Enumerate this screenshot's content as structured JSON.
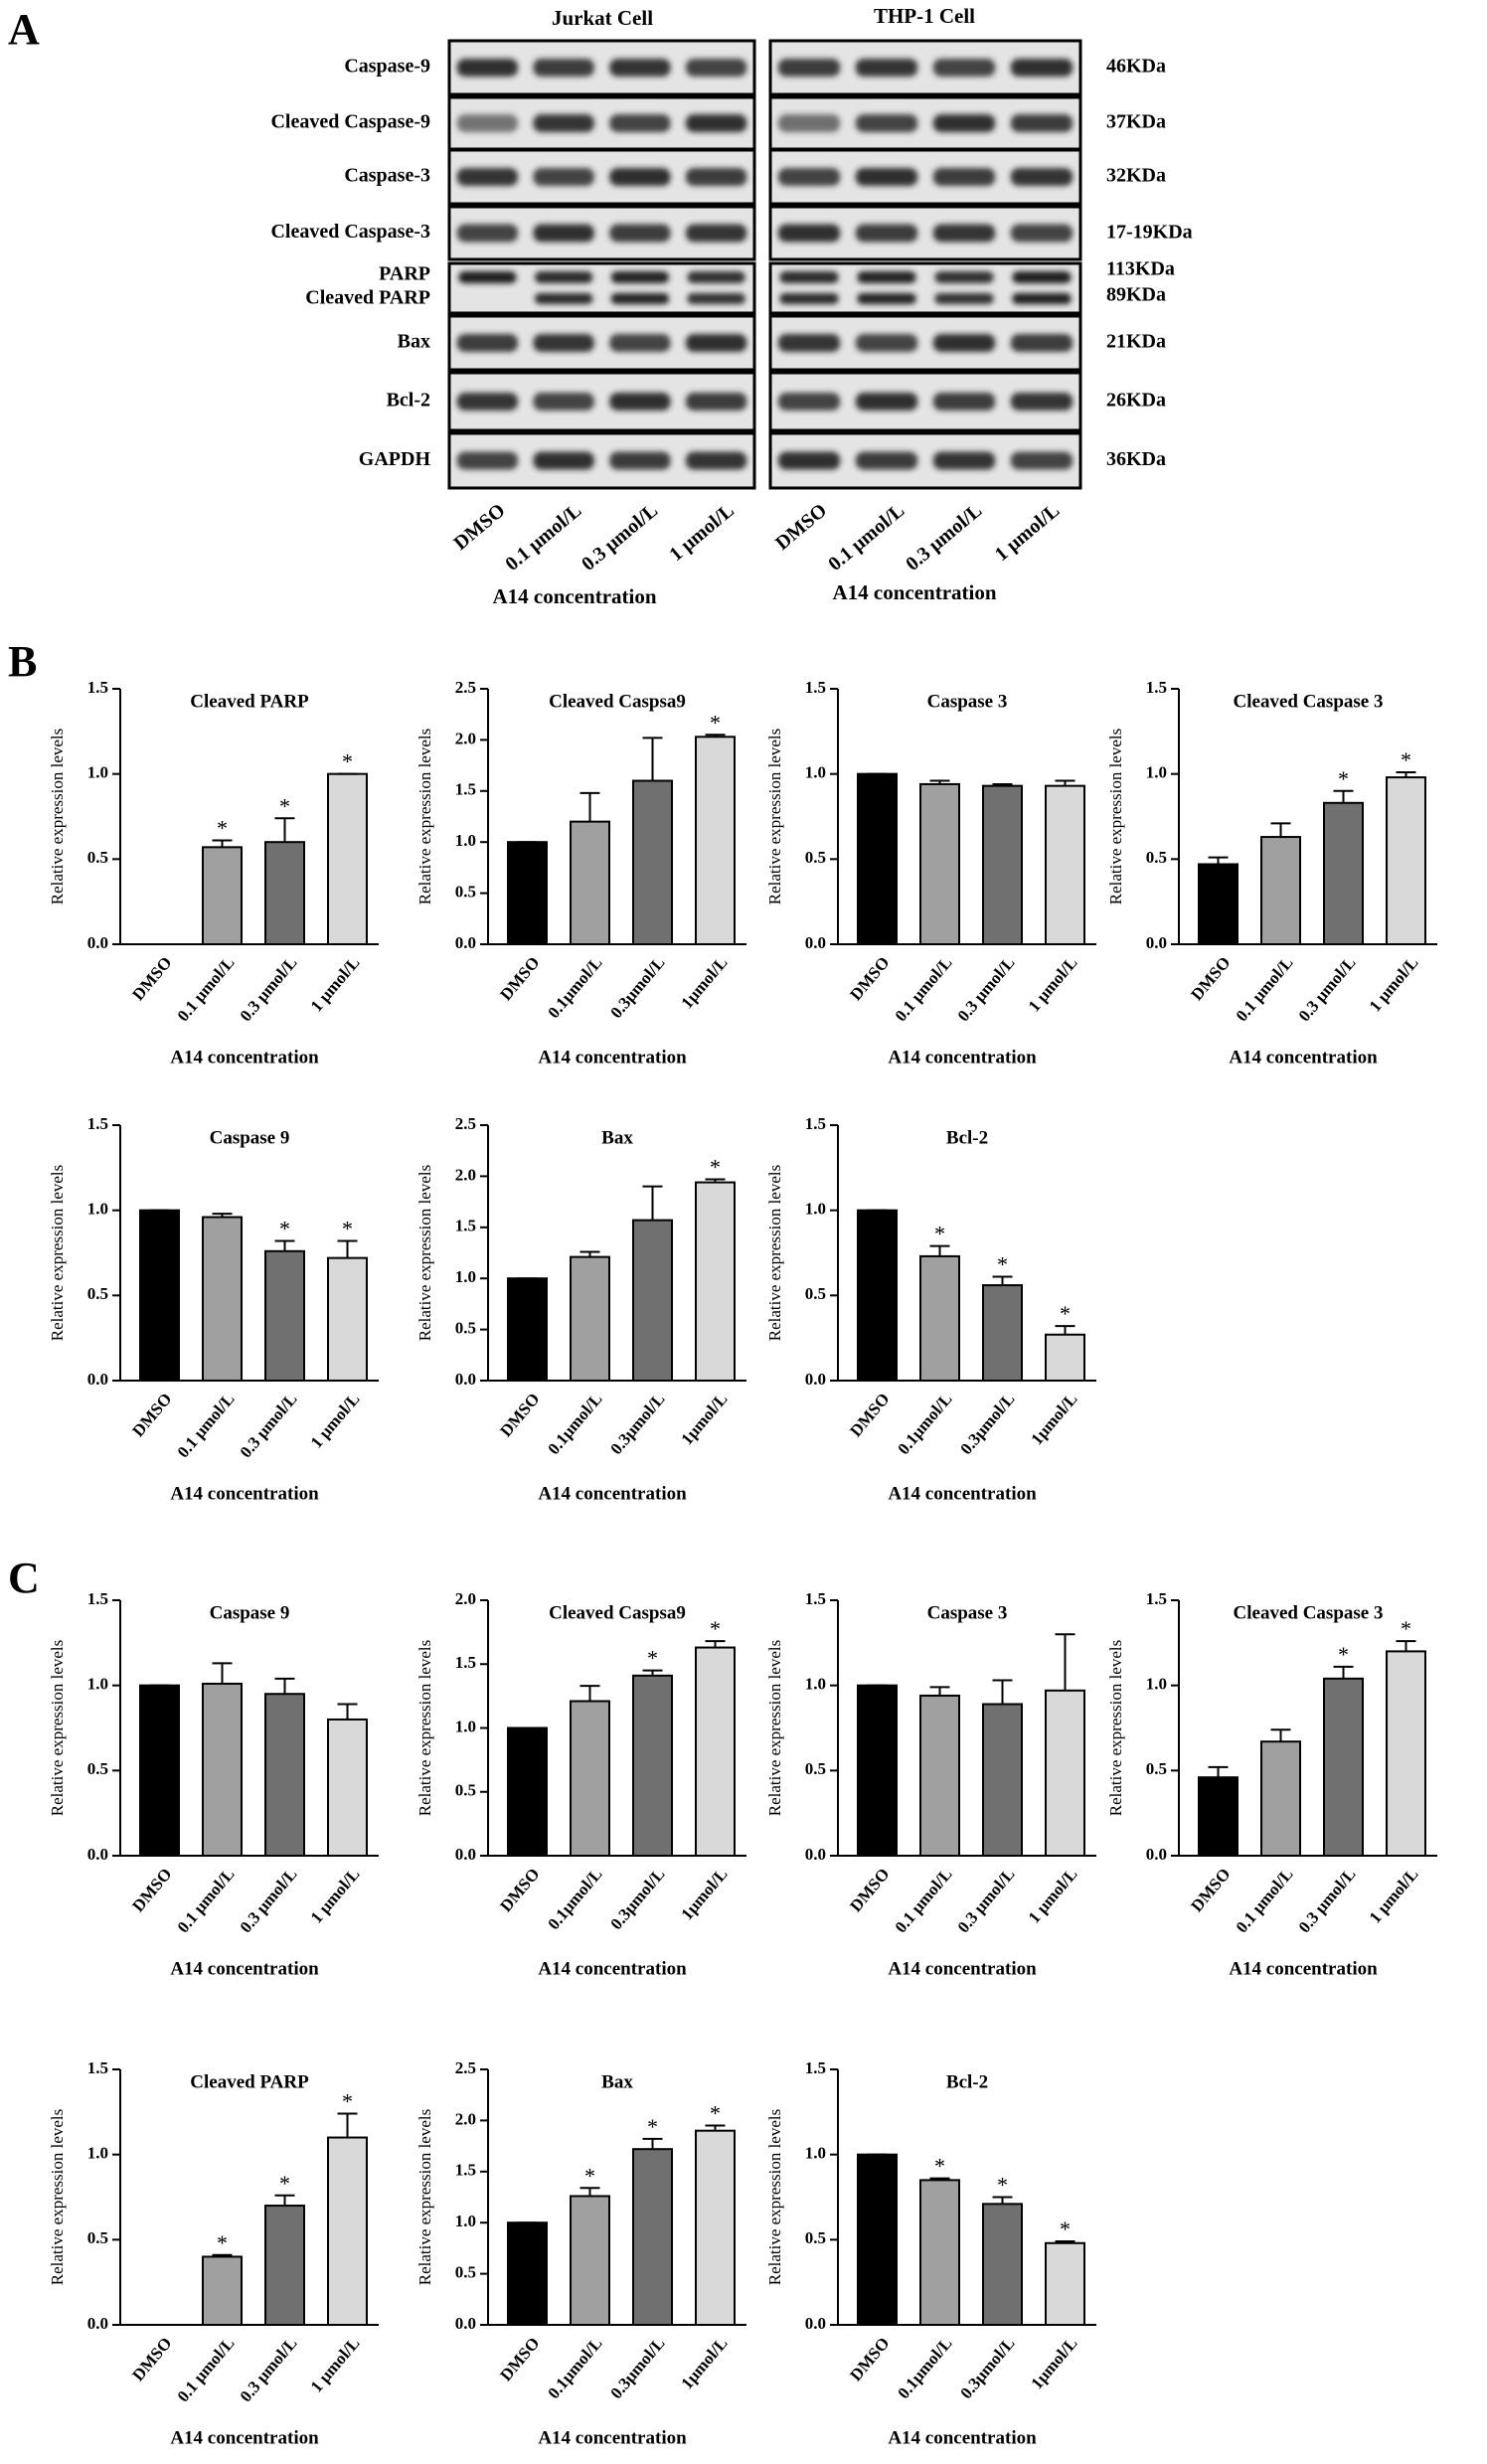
{
  "panel_labels": [
    "A",
    "B",
    "C"
  ],
  "blot": {
    "headers": [
      "Jurkat Cell",
      "THP-1 Cell"
    ],
    "rows": [
      {
        "labels": [
          "Caspase-9"
        ],
        "kda": [
          "46KDa"
        ]
      },
      {
        "labels": [
          "Cleaved Caspase-9"
        ],
        "kda": [
          "37KDa"
        ]
      },
      {
        "labels": [
          "Caspase-3"
        ],
        "kda": [
          "32KDa"
        ]
      },
      {
        "labels": [
          "Cleaved Caspase-3"
        ],
        "kda": [
          "17-19KDa"
        ]
      },
      {
        "labels": [
          "PARP",
          "Cleaved PARP"
        ],
        "kda": [
          "113KDa",
          "89KDa"
        ]
      },
      {
        "labels": [
          "Bax"
        ],
        "kda": [
          "21KDa"
        ]
      },
      {
        "labels": [
          "Bcl-2"
        ],
        "kda": [
          "26KDa"
        ]
      },
      {
        "labels": [
          "GAPDH"
        ],
        "kda": [
          "36KDa"
        ]
      }
    ],
    "lanes": [
      "DMSO",
      "0.1 μmol/L",
      "0.3 μmol/L",
      "1 μmol/L"
    ],
    "xlabel": "A14 concentration"
  },
  "chart_data": [
    {
      "type": "bar",
      "title": "Cleaved PARP",
      "ylabel": "Relative expression levels",
      "xlabel": "A14 concentration",
      "categories": [
        "DMSO",
        "0.1 μmol/L",
        "0.3 μmol/L",
        "1 μmol/L"
      ],
      "values": [
        0,
        0.57,
        0.6,
        1.0
      ],
      "errors": [
        0,
        0.04,
        0.14,
        0
      ],
      "stars": [
        null,
        "*",
        "*",
        "*"
      ],
      "colors": [
        "#000000",
        "#a0a0a0",
        "#707070",
        "#d9d9d9"
      ],
      "ylim": [
        0,
        1.5
      ],
      "yticks": [
        {
          "value": 0,
          "label": "0.0"
        },
        {
          "value": 0.5,
          "label": "0.5"
        },
        {
          "value": 1,
          "label": "1.0"
        },
        {
          "value": 1.5,
          "label": "1.5"
        }
      ]
    },
    {
      "type": "bar",
      "title": "Cleaved Caspsa9",
      "ylabel": "Relative expression levels",
      "xlabel": "A14 concentration",
      "categories": [
        "DMSO",
        "0.1μmol/L",
        "0.3μmol/L",
        "1μmol/L"
      ],
      "values": [
        1.0,
        1.2,
        1.6,
        2.03
      ],
      "errors": [
        0,
        0.28,
        0.42,
        0.02
      ],
      "stars": [
        null,
        null,
        null,
        "*"
      ],
      "colors": [
        "#000000",
        "#a0a0a0",
        "#707070",
        "#d9d9d9"
      ],
      "ylim": [
        0,
        2.5
      ],
      "yticks": [
        {
          "value": 0,
          "label": "0.0"
        },
        {
          "value": 0.5,
          "label": "0.5"
        },
        {
          "value": 1,
          "label": "1.0"
        },
        {
          "value": 1.5,
          "label": "1.5"
        },
        {
          "value": 2,
          "label": "2.0"
        },
        {
          "value": 2.5,
          "label": "2.5"
        }
      ]
    },
    {
      "type": "bar",
      "title": "Caspase 3",
      "ylabel": "Relative expression levels",
      "xlabel": "A14 concentration",
      "categories": [
        "DMSO",
        "0.1 μmol/L",
        "0.3 μmol/L",
        "1 μmol/L"
      ],
      "values": [
        1.0,
        0.94,
        0.93,
        0.93
      ],
      "errors": [
        0,
        0.02,
        0.01,
        0.03
      ],
      "stars": [
        null,
        null,
        null,
        null
      ],
      "colors": [
        "#000000",
        "#a0a0a0",
        "#707070",
        "#d9d9d9"
      ],
      "ylim": [
        0,
        1.5
      ],
      "yticks": [
        {
          "value": 0,
          "label": "0.0"
        },
        {
          "value": 0.5,
          "label": "0.5"
        },
        {
          "value": 1,
          "label": "1.0"
        },
        {
          "value": 1.5,
          "label": "1.5"
        }
      ]
    },
    {
      "type": "bar",
      "title": "Cleaved Caspase 3",
      "ylabel": "Relative expression levels",
      "xlabel": "A14 concentration",
      "categories": [
        "DMSO",
        "0.1 μmol/L",
        "0.3 μmol/L",
        "1 μmol/L"
      ],
      "values": [
        0.47,
        0.63,
        0.83,
        0.98
      ],
      "errors": [
        0.04,
        0.08,
        0.07,
        0.03
      ],
      "stars": [
        null,
        null,
        "*",
        "*"
      ],
      "colors": [
        "#000000",
        "#a0a0a0",
        "#707070",
        "#d9d9d9"
      ],
      "ylim": [
        0,
        1.5
      ],
      "yticks": [
        {
          "value": 0,
          "label": "0.0"
        },
        {
          "value": 0.5,
          "label": "0.5"
        },
        {
          "value": 1,
          "label": "1.0"
        },
        {
          "value": 1.5,
          "label": "1.5"
        }
      ]
    },
    {
      "type": "bar",
      "title": "Caspase 9",
      "ylabel": "Relative expression levels",
      "xlabel": "A14 concentration",
      "categories": [
        "DMSO",
        "0.1 μmol/L",
        "0.3 μmol/L",
        "1 μmol/L"
      ],
      "values": [
        1.0,
        0.96,
        0.76,
        0.72
      ],
      "errors": [
        0,
        0.02,
        0.06,
        0.1
      ],
      "stars": [
        null,
        null,
        "*",
        "*"
      ],
      "colors": [
        "#000000",
        "#a0a0a0",
        "#707070",
        "#d9d9d9"
      ],
      "ylim": [
        0,
        1.5
      ],
      "yticks": [
        {
          "value": 0,
          "label": "0.0"
        },
        {
          "value": 0.5,
          "label": "0.5"
        },
        {
          "value": 1,
          "label": "1.0"
        },
        {
          "value": 1.5,
          "label": "1.5"
        }
      ]
    },
    {
      "type": "bar",
      "title": "Bax",
      "ylabel": "Relative expression levels",
      "xlabel": "A14 concentration",
      "categories": [
        "DMSO",
        "0.1μmol/L",
        "0.3μmol/L",
        "1μmol/L"
      ],
      "values": [
        1.0,
        1.21,
        1.57,
        1.94
      ],
      "errors": [
        0,
        0.05,
        0.33,
        0.03
      ],
      "stars": [
        null,
        null,
        null,
        "*"
      ],
      "colors": [
        "#000000",
        "#a0a0a0",
        "#707070",
        "#d9d9d9"
      ],
      "ylim": [
        0,
        2.5
      ],
      "yticks": [
        {
          "value": 0,
          "label": "0.0"
        },
        {
          "value": 0.5,
          "label": "0.5"
        },
        {
          "value": 1,
          "label": "1.0"
        },
        {
          "value": 1.5,
          "label": "1.5"
        },
        {
          "value": 2,
          "label": "2.0"
        },
        {
          "value": 2.5,
          "label": "2.5"
        }
      ]
    },
    {
      "type": "bar",
      "title": "Bcl-2",
      "ylabel": "Relative expression levels",
      "xlabel": "A14 concentration",
      "categories": [
        "DMSO",
        "0.1μmol/L",
        "0.3μmol/L",
        "1μmol/L"
      ],
      "values": [
        1.0,
        0.73,
        0.56,
        0.27
      ],
      "errors": [
        0,
        0.06,
        0.05,
        0.05
      ],
      "stars": [
        null,
        "*",
        "*",
        "*"
      ],
      "colors": [
        "#000000",
        "#a0a0a0",
        "#707070",
        "#d9d9d9"
      ],
      "ylim": [
        0,
        1.5
      ],
      "yticks": [
        {
          "value": 0,
          "label": "0.0"
        },
        {
          "value": 0.5,
          "label": "0.5"
        },
        {
          "value": 1,
          "label": "1.0"
        },
        {
          "value": 1.5,
          "label": "1.5"
        }
      ]
    },
    {
      "type": "bar",
      "title": "Caspase 9",
      "ylabel": "Relative expression levels",
      "xlabel": "A14 concentration",
      "categories": [
        "DMSO",
        "0.1 μmol/L",
        "0.3 μmol/L",
        "1 μmol/L"
      ],
      "values": [
        1.0,
        1.01,
        0.95,
        0.8
      ],
      "errors": [
        0,
        0.12,
        0.09,
        0.09
      ],
      "stars": [
        null,
        null,
        null,
        null
      ],
      "colors": [
        "#000000",
        "#a0a0a0",
        "#707070",
        "#d9d9d9"
      ],
      "ylim": [
        0,
        1.5
      ],
      "yticks": [
        {
          "value": 0,
          "label": "0.0"
        },
        {
          "value": 0.5,
          "label": "0.5"
        },
        {
          "value": 1,
          "label": "1.0"
        },
        {
          "value": 1.5,
          "label": "1.5"
        }
      ]
    },
    {
      "type": "bar",
      "title": "Cleaved Caspsa9",
      "ylabel": "Relative expression levels",
      "xlabel": "A14 concentration",
      "categories": [
        "DMSO",
        "0.1μmol/L",
        "0.3μmol/L",
        "1μmol/L"
      ],
      "values": [
        1.0,
        1.21,
        1.41,
        1.63
      ],
      "errors": [
        0,
        0.12,
        0.04,
        0.05
      ],
      "stars": [
        null,
        null,
        "*",
        "*"
      ],
      "colors": [
        "#000000",
        "#a0a0a0",
        "#707070",
        "#d9d9d9"
      ],
      "ylim": [
        0,
        2
      ],
      "yticks": [
        {
          "value": 0,
          "label": "0.0"
        },
        {
          "value": 0.5,
          "label": "0.5"
        },
        {
          "value": 1,
          "label": "1.0"
        },
        {
          "value": 1.5,
          "label": "1.5"
        },
        {
          "value": 2,
          "label": "2.0"
        }
      ]
    },
    {
      "type": "bar",
      "title": "Caspase 3",
      "ylabel": "Relative expression levels",
      "xlabel": "A14 concentration",
      "categories": [
        "DMSO",
        "0.1 μmol/L",
        "0.3 μmol/L",
        "1 μmol/L"
      ],
      "values": [
        1.0,
        0.94,
        0.89,
        0.97
      ],
      "errors": [
        0,
        0.05,
        0.14,
        0.33
      ],
      "stars": [
        null,
        null,
        null,
        null
      ],
      "colors": [
        "#000000",
        "#a0a0a0",
        "#707070",
        "#d9d9d9"
      ],
      "ylim": [
        0,
        1.5
      ],
      "yticks": [
        {
          "value": 0,
          "label": "0.0"
        },
        {
          "value": 0.5,
          "label": "0.5"
        },
        {
          "value": 1,
          "label": "1.0"
        },
        {
          "value": 1.5,
          "label": "1.5"
        }
      ]
    },
    {
      "type": "bar",
      "title": "Cleaved Caspase 3",
      "ylabel": "Relative expression levels",
      "xlabel": "A14 concentration",
      "categories": [
        "DMSO",
        "0.1 μmol/L",
        "0.3 μmol/L",
        "1 μmol/L"
      ],
      "values": [
        0.46,
        0.67,
        1.04,
        1.2
      ],
      "errors": [
        0.06,
        0.07,
        0.07,
        0.06
      ],
      "stars": [
        null,
        null,
        "*",
        "*"
      ],
      "colors": [
        "#000000",
        "#a0a0a0",
        "#707070",
        "#d9d9d9"
      ],
      "ylim": [
        0,
        1.5
      ],
      "yticks": [
        {
          "value": 0,
          "label": "0.0"
        },
        {
          "value": 0.5,
          "label": "0.5"
        },
        {
          "value": 1,
          "label": "1.0"
        },
        {
          "value": 1.5,
          "label": "1.5"
        }
      ]
    },
    {
      "type": "bar",
      "title": "Cleaved PARP",
      "ylabel": "Relative expression levels",
      "xlabel": "A14 concentration",
      "categories": [
        "DMSO",
        "0.1 μmol/L",
        "0.3 μmol/L",
        "1 μmol/L"
      ],
      "values": [
        0,
        0.4,
        0.7,
        1.1
      ],
      "errors": [
        0,
        0.01,
        0.06,
        0.14
      ],
      "stars": [
        null,
        "*",
        "*",
        "*"
      ],
      "colors": [
        "#000000",
        "#a0a0a0",
        "#707070",
        "#d9d9d9"
      ],
      "ylim": [
        0,
        1.5
      ],
      "yticks": [
        {
          "value": 0,
          "label": "0.0"
        },
        {
          "value": 0.5,
          "label": "0.5"
        },
        {
          "value": 1,
          "label": "1.0"
        },
        {
          "value": 1.5,
          "label": "1.5"
        }
      ]
    },
    {
      "type": "bar",
      "title": "Bax",
      "ylabel": "Relative expression levels",
      "xlabel": "A14 concentration",
      "categories": [
        "DMSO",
        "0.1μmol/L",
        "0.3μmol/L",
        "1μmol/L"
      ],
      "values": [
        1.0,
        1.26,
        1.72,
        1.9
      ],
      "errors": [
        0,
        0.08,
        0.1,
        0.05
      ],
      "stars": [
        null,
        "*",
        "*",
        "*"
      ],
      "colors": [
        "#000000",
        "#a0a0a0",
        "#707070",
        "#d9d9d9"
      ],
      "ylim": [
        0,
        2.5
      ],
      "yticks": [
        {
          "value": 0,
          "label": "0.0"
        },
        {
          "value": 0.5,
          "label": "0.5"
        },
        {
          "value": 1,
          "label": "1.0"
        },
        {
          "value": 1.5,
          "label": "1.5"
        },
        {
          "value": 2,
          "label": "2.0"
        },
        {
          "value": 2.5,
          "label": "2.5"
        }
      ]
    },
    {
      "type": "bar",
      "title": "Bcl-2",
      "ylabel": "Relative expression levels",
      "xlabel": "A14 concentration",
      "categories": [
        "DMSO",
        "0.1μmol/L",
        "0.3μmol/L",
        "1μmol/L"
      ],
      "values": [
        1.0,
        0.85,
        0.71,
        0.48
      ],
      "errors": [
        0,
        0.01,
        0.04,
        0.01
      ],
      "stars": [
        null,
        "*",
        "*",
        "*"
      ],
      "colors": [
        "#000000",
        "#a0a0a0",
        "#707070",
        "#d9d9d9"
      ],
      "ylim": [
        0,
        1.5
      ],
      "yticks": [
        {
          "value": 0,
          "label": "0.0"
        },
        {
          "value": 0.5,
          "label": "0.5"
        },
        {
          "value": 1,
          "label": "1.0"
        },
        {
          "value": 1.5,
          "label": "1.5"
        }
      ]
    }
  ]
}
